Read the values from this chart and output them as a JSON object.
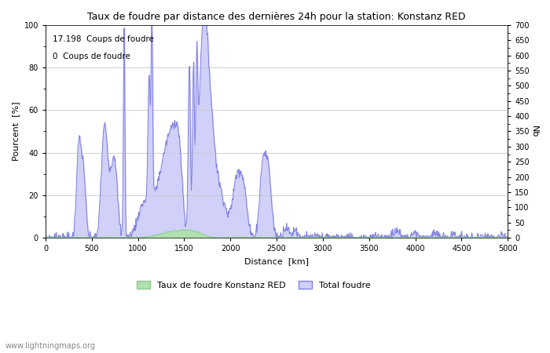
{
  "title": "Taux de foudre par distance des dernières 24h pour la station: Konstanz RED",
  "xlabel": "Distance  [km]",
  "ylabel_left": "Pourcent  [%]",
  "ylabel_right": "Nb",
  "annotation_line1": "17.198  Coups de foudre",
  "annotation_line2": "0  Coups de foudre",
  "xlim": [
    0,
    5000
  ],
  "ylim_left": [
    0,
    100
  ],
  "ylim_right": [
    0,
    700
  ],
  "xticks": [
    0,
    500,
    1000,
    1500,
    2000,
    2500,
    3000,
    3500,
    4000,
    4500,
    5000
  ],
  "yticks_left": [
    0,
    20,
    40,
    60,
    80,
    100
  ],
  "yticks_right": [
    0,
    50,
    100,
    150,
    200,
    250,
    300,
    350,
    400,
    450,
    500,
    550,
    600,
    650,
    700
  ],
  "legend_label_green": "Taux de foudre Konstanz RED",
  "legend_label_blue": "Total foudre",
  "watermark": "www.lightningmaps.org",
  "line_color": "#8080e0",
  "fill_color_blue": "#d0d0f8",
  "fill_color_green": "#b0e0b0",
  "background_color": "#ffffff",
  "grid_color": "#c8c8c8"
}
